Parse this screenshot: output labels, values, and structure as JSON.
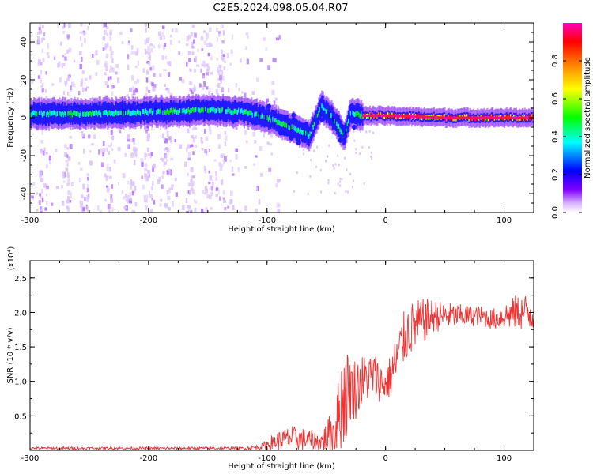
{
  "title": "C2E5.2024.098.05.04.R07",
  "chart_data": [
    {
      "type": "heatmap",
      "title": "C2E5.2024.098.05.04.R07",
      "xlabel": "Height of straight line (km)",
      "ylabel": "Frequency (Hz)",
      "xlim": [
        -300,
        125
      ],
      "ylim": [
        -50,
        50
      ],
      "xticks": [
        -300,
        -200,
        -100,
        0,
        100
      ],
      "xtick_labels": [
        "-300",
        "-200",
        "-100",
        "0",
        "100"
      ],
      "yticks": [
        -40,
        -20,
        0,
        20,
        40
      ],
      "ytick_labels": [
        "-40",
        "-20",
        "0",
        "20",
        "40"
      ],
      "colorbar": {
        "label": "Normalized spectral amplitude",
        "range": [
          0,
          1
        ],
        "ticks": [
          0.0,
          0.2,
          0.4,
          0.6,
          0.8
        ],
        "tick_labels": [
          "0.0",
          "0.2",
          "0.4",
          "0.6",
          "0.8"
        ],
        "colors": [
          "#ffffff",
          "#c080ff",
          "#8000ff",
          "#0000ff",
          "#00ffff",
          "#00ff00",
          "#ffff00",
          "#ff8000",
          "#ff0000",
          "#ff00c0"
        ]
      },
      "ridge": [
        {
          "x": -300,
          "y": 2
        },
        {
          "x": -250,
          "y": 2
        },
        {
          "x": -200,
          "y": 3
        },
        {
          "x": -150,
          "y": 4
        },
        {
          "x": -120,
          "y": 3
        },
        {
          "x": -100,
          "y": 0
        },
        {
          "x": -90,
          "y": -3
        },
        {
          "x": -75,
          "y": -6
        },
        {
          "x": -65,
          "y": -10
        },
        {
          "x": -55,
          "y": 6
        },
        {
          "x": -45,
          "y": 0
        },
        {
          "x": -35,
          "y": -10
        },
        {
          "x": -30,
          "y": 3
        },
        {
          "x": -20,
          "y": 1
        },
        {
          "x": 0,
          "y": 1
        },
        {
          "x": 50,
          "y": 0
        },
        {
          "x": 100,
          "y": 0
        },
        {
          "x": 125,
          "y": 0
        }
      ]
    },
    {
      "type": "line",
      "xlabel": "Height of straight line (km)",
      "ylabel": "SNR (10 * v/v)",
      "y_multiplier": "(x10⁴)",
      "xlim": [
        -300,
        125
      ],
      "ylim": [
        0,
        2.75
      ],
      "xticks": [
        -300,
        -200,
        -100,
        0,
        100
      ],
      "xtick_labels": [
        "-300",
        "-200",
        "-100",
        "0",
        "100"
      ],
      "yticks": [
        0.5,
        1.0,
        1.5,
        2.0,
        2.5
      ],
      "ytick_labels": [
        "0.5",
        "1.0",
        "1.5",
        "2.0",
        "2.5"
      ],
      "series": [
        {
          "name": "SNR",
          "color": "#ee3333",
          "x": [
            -300,
            -250,
            -200,
            -150,
            -120,
            -105,
            -95,
            -80,
            -65,
            -55,
            -45,
            -40,
            -35,
            -30,
            -25,
            -20,
            -15,
            -10,
            -5,
            0,
            5,
            10,
            15,
            20,
            30,
            40,
            50,
            60,
            70,
            80,
            90,
            100,
            110,
            125
          ],
          "y": [
            0.03,
            0.03,
            0.03,
            0.03,
            0.03,
            0.05,
            0.12,
            0.18,
            0.15,
            0.12,
            0.25,
            0.5,
            0.8,
            0.9,
            0.9,
            1.0,
            1.05,
            1.1,
            1.0,
            0.95,
            1.1,
            1.35,
            1.6,
            1.75,
            1.85,
            1.95,
            1.95,
            1.95,
            1.95,
            1.95,
            1.9,
            1.95,
            2.0,
            2.0
          ],
          "noise": [
            0.02,
            0.02,
            0.02,
            0.02,
            0.02,
            0.04,
            0.12,
            0.18,
            0.16,
            0.12,
            0.35,
            0.5,
            0.8,
            0.5,
            0.45,
            0.4,
            0.35,
            0.35,
            0.3,
            0.25,
            0.35,
            0.4,
            0.4,
            0.4,
            0.35,
            0.25,
            0.2,
            0.18,
            0.15,
            0.15,
            0.15,
            0.2,
            0.25,
            0.3
          ]
        }
      ]
    }
  ]
}
